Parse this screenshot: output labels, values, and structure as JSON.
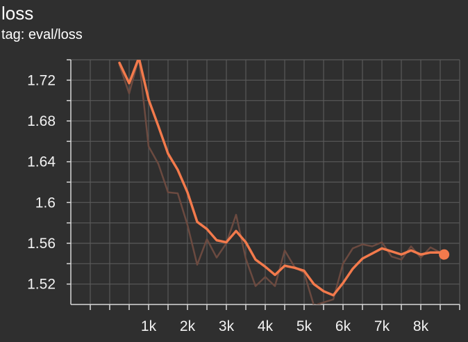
{
  "header": {
    "title": "loss",
    "tag": "tag: eval/loss"
  },
  "colors": {
    "background": "#2f2f2f",
    "grid": "#5a5a5a",
    "axis": "#d9d9d9",
    "smoothed": "#f37a4c",
    "raw": "#6b4a40"
  },
  "chart_data": {
    "type": "line",
    "title": "loss",
    "subtitle": "tag: eval/loss",
    "xlabel": "",
    "ylabel": "",
    "xlim": [
      -1000,
      9000
    ],
    "ylim": [
      1.5,
      1.74
    ],
    "x_ticks": [
      1000,
      2000,
      3000,
      4000,
      5000,
      6000,
      7000,
      8000
    ],
    "x_tick_labels": [
      "1k",
      "2k",
      "3k",
      "4k",
      "5k",
      "6k",
      "7k",
      "8k"
    ],
    "y_ticks": [
      1.52,
      1.56,
      1.6,
      1.64,
      1.68,
      1.72
    ],
    "y_tick_labels": [
      "1.52",
      "1.56",
      "1.6",
      "1.64",
      "1.68",
      "1.72"
    ],
    "grid": true,
    "series": [
      {
        "name": "raw",
        "x": [
          250,
          500,
          750,
          1000,
          1250,
          1500,
          1750,
          2000,
          2250,
          2500,
          2750,
          3000,
          3250,
          3500,
          3750,
          4000,
          4250,
          4500,
          4750,
          5000,
          5250,
          5500,
          5750,
          6000,
          6250,
          6500,
          6750,
          7000,
          7250,
          7500,
          7750,
          8000,
          8250,
          8500,
          8600
        ],
        "values": [
          1.735,
          1.707,
          1.742,
          1.655,
          1.638,
          1.61,
          1.609,
          1.578,
          1.539,
          1.564,
          1.546,
          1.56,
          1.588,
          1.545,
          1.518,
          1.527,
          1.518,
          1.553,
          1.537,
          1.531,
          1.499,
          1.502,
          1.505,
          1.54,
          1.555,
          1.559,
          1.557,
          1.561,
          1.547,
          1.544,
          1.557,
          1.546,
          1.556,
          1.551,
          1.549
        ]
      },
      {
        "name": "smoothed",
        "x": [
          250,
          500,
          750,
          1000,
          1250,
          1500,
          1750,
          2000,
          2250,
          2500,
          2750,
          3000,
          3250,
          3500,
          3750,
          4000,
          4250,
          4500,
          4750,
          5000,
          5250,
          5500,
          5750,
          6000,
          6250,
          6500,
          6750,
          7000,
          7250,
          7500,
          7750,
          8000,
          8250,
          8500,
          8600
        ],
        "values": [
          1.737,
          1.717,
          1.742,
          1.701,
          1.675,
          1.648,
          1.632,
          1.61,
          1.581,
          1.574,
          1.563,
          1.561,
          1.572,
          1.561,
          1.544,
          1.537,
          1.529,
          1.538,
          1.536,
          1.533,
          1.52,
          1.513,
          1.509,
          1.521,
          1.535,
          1.545,
          1.55,
          1.555,
          1.552,
          1.549,
          1.553,
          1.549,
          1.551,
          1.551,
          1.549
        ]
      }
    ]
  }
}
